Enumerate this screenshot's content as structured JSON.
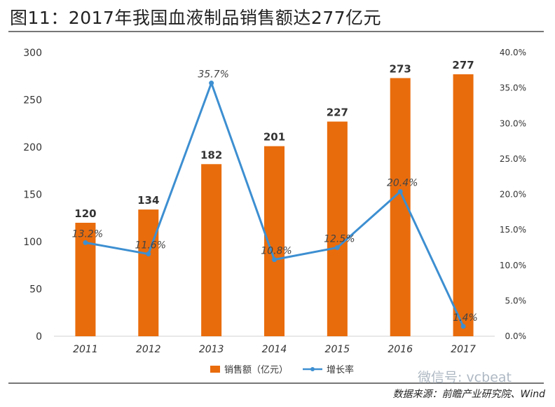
{
  "header": {
    "title": "图11：2017年我国血液制品销售额达277亿元"
  },
  "footer": {
    "source": "数据来源：前瞻产业研究院、Wind",
    "watermark": "微信号: vcbeat"
  },
  "chart_data": {
    "type": "bar",
    "categories": [
      "2011",
      "2012",
      "2013",
      "2014",
      "2015",
      "2016",
      "2017"
    ],
    "series": [
      {
        "name": "销售额（亿元）",
        "type": "bar",
        "axis": "left",
        "color": "#e96c0c",
        "values": [
          120,
          134,
          182,
          201,
          227,
          273,
          277
        ],
        "labels": [
          "120",
          "134",
          "182",
          "201",
          "227",
          "273",
          "277"
        ]
      },
      {
        "name": "增长率",
        "type": "line",
        "axis": "right",
        "color": "#3d8fd1",
        "values": [
          13.2,
          11.6,
          35.7,
          10.8,
          12.5,
          20.4,
          1.4
        ],
        "labels": [
          "13.2%",
          "11.6%",
          "35.7%",
          "10.8%",
          "12.5%",
          "20.4%",
          "1.4%"
        ]
      }
    ],
    "y_left": {
      "min": 0,
      "max": 300,
      "ticks": [
        "0",
        "50",
        "100",
        "150",
        "200",
        "250",
        "300"
      ]
    },
    "y_right": {
      "min": 0,
      "max": 40,
      "ticks": [
        "0.0%",
        "5.0%",
        "10.0%",
        "15.0%",
        "20.0%",
        "25.0%",
        "30.0%",
        "35.0%",
        "40.0%"
      ]
    },
    "legend": {
      "position": "bottom",
      "entries": [
        "销售额（亿元）",
        "增长率"
      ]
    },
    "title": "图11：2017年我国血液制品销售额达277亿元",
    "xlabel": "",
    "ylabel": ""
  }
}
